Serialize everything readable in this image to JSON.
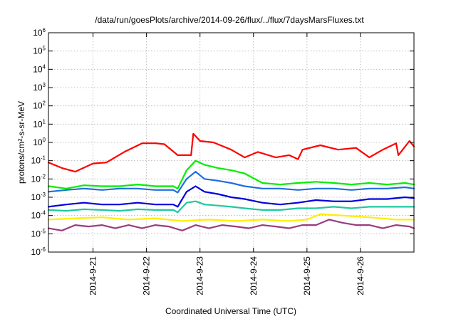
{
  "chart_data": {
    "type": "line",
    "title": "/data/run/goesPlots/archive/2014-09-26/flux/../flux/7daysMarsFluxes.txt",
    "xlabel": "Coordinated Universal Time (UTC)",
    "ylabel": "protons/cm²-s-sr-MeV",
    "y_scale": "log",
    "ylim": [
      1e-06,
      1000000.0
    ],
    "y_ticks": [
      {
        "value": 1e-06,
        "base": "10",
        "exp": "-6"
      },
      {
        "value": 1e-05,
        "base": "10",
        "exp": "-5"
      },
      {
        "value": 0.0001,
        "base": "10",
        "exp": "-4"
      },
      {
        "value": 0.001,
        "base": "10",
        "exp": "-3"
      },
      {
        "value": 0.01,
        "base": "10",
        "exp": "-2"
      },
      {
        "value": 0.1,
        "base": "10",
        "exp": "-1"
      },
      {
        "value": 1,
        "base": "10",
        "exp": "0"
      },
      {
        "value": 10,
        "base": "10",
        "exp": "1"
      },
      {
        "value": 100,
        "base": "10",
        "exp": "2"
      },
      {
        "value": 1000,
        "base": "10",
        "exp": "3"
      },
      {
        "value": 10000,
        "base": "10",
        "exp": "4"
      },
      {
        "value": 100000,
        "base": "10",
        "exp": "5"
      },
      {
        "value": 1000000,
        "base": "10",
        "exp": "6"
      }
    ],
    "xlim": [
      "2014-09-20T04:00",
      "2014-09-27T00:00"
    ],
    "x_ticks": [
      "2014-9-21",
      "2014-9-22",
      "2014-9-23",
      "2014-9-24",
      "2014-9-25",
      "2014-9-26"
    ],
    "grid": true,
    "series": [
      {
        "color": "#ff0000",
        "x": [
          "2014-09-20T04:00",
          "2014-09-20T10:00",
          "2014-09-20T16:00",
          "2014-09-21T00:00",
          "2014-09-21T06:00",
          "2014-09-21T14:00",
          "2014-09-21T22:00",
          "2014-09-22T04:00",
          "2014-09-22T08:00",
          "2014-09-22T14:00",
          "2014-09-22T20:00",
          "2014-09-22T21:00",
          "2014-09-23T00:00",
          "2014-09-23T06:00",
          "2014-09-23T14:00",
          "2014-09-23T20:00",
          "2014-09-24T02:00",
          "2014-09-24T10:00",
          "2014-09-24T16:00",
          "2014-09-24T20:00",
          "2014-09-24T22:00",
          "2014-09-25T06:00",
          "2014-09-25T14:00",
          "2014-09-25T22:00",
          "2014-09-26T04:00",
          "2014-09-26T10:00",
          "2014-09-26T16:00",
          "2014-09-26T17:00",
          "2014-09-26T22:00",
          "2014-09-27T00:00"
        ],
        "values": [
          0.08,
          0.04,
          0.025,
          0.07,
          0.08,
          0.3,
          0.9,
          0.9,
          0.8,
          0.2,
          0.2,
          3.0,
          1.2,
          1.0,
          0.4,
          0.15,
          0.3,
          0.15,
          0.2,
          0.12,
          0.4,
          0.7,
          0.4,
          0.5,
          0.15,
          0.4,
          0.9,
          0.2,
          1.2,
          0.6
        ]
      },
      {
        "color": "#00ee00",
        "x": [
          "2014-09-20T04:00",
          "2014-09-20T12:00",
          "2014-09-20T20:00",
          "2014-09-21T04:00",
          "2014-09-21T12:00",
          "2014-09-21T20:00",
          "2014-09-22T04:00",
          "2014-09-22T12:00",
          "2014-09-22T14:00",
          "2014-09-22T18:00",
          "2014-09-22T22:00",
          "2014-09-23T02:00",
          "2014-09-23T08:00",
          "2014-09-23T14:00",
          "2014-09-23T20:00",
          "2014-09-24T04:00",
          "2014-09-24T12:00",
          "2014-09-24T20:00",
          "2014-09-25T04:00",
          "2014-09-25T12:00",
          "2014-09-25T20:00",
          "2014-09-26T04:00",
          "2014-09-26T12:00",
          "2014-09-26T20:00",
          "2014-09-27T00:00"
        ],
        "values": [
          0.004,
          0.003,
          0.0045,
          0.004,
          0.004,
          0.005,
          0.004,
          0.004,
          0.003,
          0.03,
          0.1,
          0.06,
          0.04,
          0.03,
          0.02,
          0.006,
          0.005,
          0.006,
          0.007,
          0.006,
          0.005,
          0.006,
          0.005,
          0.006,
          0.005
        ]
      },
      {
        "color": "#1e6fe0",
        "x": [
          "2014-09-20T04:00",
          "2014-09-20T12:00",
          "2014-09-20T20:00",
          "2014-09-21T04:00",
          "2014-09-21T12:00",
          "2014-09-21T20:00",
          "2014-09-22T04:00",
          "2014-09-22T12:00",
          "2014-09-22T14:00",
          "2014-09-22T18:00",
          "2014-09-22T22:00",
          "2014-09-23T02:00",
          "2014-09-23T08:00",
          "2014-09-23T14:00",
          "2014-09-23T20:00",
          "2014-09-24T04:00",
          "2014-09-24T12:00",
          "2014-09-24T20:00",
          "2014-09-25T04:00",
          "2014-09-25T12:00",
          "2014-09-25T20:00",
          "2014-09-26T04:00",
          "2014-09-26T12:00",
          "2014-09-26T20:00",
          "2014-09-27T00:00"
        ],
        "values": [
          0.002,
          0.0025,
          0.003,
          0.0025,
          0.003,
          0.003,
          0.0025,
          0.0025,
          0.0018,
          0.01,
          0.025,
          0.01,
          0.008,
          0.006,
          0.004,
          0.003,
          0.003,
          0.0025,
          0.003,
          0.003,
          0.0025,
          0.003,
          0.003,
          0.0035,
          0.003
        ]
      },
      {
        "color": "#0000dd",
        "x": [
          "2014-09-20T04:00",
          "2014-09-20T12:00",
          "2014-09-20T20:00",
          "2014-09-21T04:00",
          "2014-09-21T12:00",
          "2014-09-21T20:00",
          "2014-09-22T04:00",
          "2014-09-22T12:00",
          "2014-09-22T14:00",
          "2014-09-22T18:00",
          "2014-09-22T22:00",
          "2014-09-23T02:00",
          "2014-09-23T08:00",
          "2014-09-23T14:00",
          "2014-09-23T20:00",
          "2014-09-24T04:00",
          "2014-09-24T12:00",
          "2014-09-24T20:00",
          "2014-09-25T04:00",
          "2014-09-25T12:00",
          "2014-09-25T20:00",
          "2014-09-26T04:00",
          "2014-09-26T12:00",
          "2014-09-26T20:00",
          "2014-09-27T00:00"
        ],
        "values": [
          0.0003,
          0.0004,
          0.0005,
          0.0004,
          0.0004,
          0.0005,
          0.0004,
          0.0004,
          0.0003,
          0.002,
          0.004,
          0.002,
          0.0015,
          0.001,
          0.0008,
          0.0005,
          0.0004,
          0.0005,
          0.0007,
          0.0006,
          0.0006,
          0.0008,
          0.0008,
          0.001,
          0.0009
        ]
      },
      {
        "color": "#20c8a0",
        "x": [
          "2014-09-20T04:00",
          "2014-09-20T12:00",
          "2014-09-20T20:00",
          "2014-09-21T04:00",
          "2014-09-21T12:00",
          "2014-09-21T20:00",
          "2014-09-22T04:00",
          "2014-09-22T12:00",
          "2014-09-22T14:00",
          "2014-09-22T18:00",
          "2014-09-22T22:00",
          "2014-09-23T02:00",
          "2014-09-23T08:00",
          "2014-09-23T14:00",
          "2014-09-23T20:00",
          "2014-09-24T04:00",
          "2014-09-24T12:00",
          "2014-09-24T20:00",
          "2014-09-25T04:00",
          "2014-09-25T12:00",
          "2014-09-25T20:00",
          "2014-09-26T04:00",
          "2014-09-26T12:00",
          "2014-09-26T20:00",
          "2014-09-27T00:00"
        ],
        "values": [
          0.0002,
          0.00018,
          0.00022,
          0.0002,
          0.00018,
          0.00022,
          0.0002,
          0.0002,
          0.00015,
          0.0005,
          0.0006,
          0.0004,
          0.00035,
          0.0003,
          0.00025,
          0.0002,
          0.0002,
          0.00025,
          0.00025,
          0.0003,
          0.00025,
          0.0003,
          0.0003,
          0.0003,
          0.0003
        ]
      },
      {
        "color": "#ffee00",
        "x": [
          "2014-09-20T04:00",
          "2014-09-20T16:00",
          "2014-09-21T04:00",
          "2014-09-21T16:00",
          "2014-09-22T04:00",
          "2014-09-22T16:00",
          "2014-09-23T04:00",
          "2014-09-23T16:00",
          "2014-09-24T04:00",
          "2014-09-24T16:00",
          "2014-09-25T00:00",
          "2014-09-25T06:00",
          "2014-09-25T16:00",
          "2014-09-26T04:00",
          "2014-09-26T16:00",
          "2014-09-27T00:00"
        ],
        "values": [
          6e-05,
          7e-05,
          8e-05,
          6e-05,
          7e-05,
          5e-05,
          6e-05,
          5e-05,
          6e-05,
          5e-05,
          6e-05,
          0.00012,
          0.0001,
          8e-05,
          6e-05,
          6e-05
        ]
      },
      {
        "color": "#9a3a80",
        "x": [
          "2014-09-20T04:00",
          "2014-09-20T10:00",
          "2014-09-20T16:00",
          "2014-09-20T22:00",
          "2014-09-21T04:00",
          "2014-09-21T10:00",
          "2014-09-21T16:00",
          "2014-09-21T22:00",
          "2014-09-22T04:00",
          "2014-09-22T10:00",
          "2014-09-22T16:00",
          "2014-09-22T22:00",
          "2014-09-23T04:00",
          "2014-09-23T10:00",
          "2014-09-23T16:00",
          "2014-09-23T22:00",
          "2014-09-24T04:00",
          "2014-09-24T10:00",
          "2014-09-24T16:00",
          "2014-09-24T22:00",
          "2014-09-25T04:00",
          "2014-09-25T10:00",
          "2014-09-25T16:00",
          "2014-09-25T22:00",
          "2014-09-26T04:00",
          "2014-09-26T10:00",
          "2014-09-26T16:00",
          "2014-09-26T22:00",
          "2014-09-27T00:00"
        ],
        "values": [
          2e-05,
          1.5e-05,
          3e-05,
          2.5e-05,
          3e-05,
          2e-05,
          3e-05,
          2e-05,
          3e-05,
          2.5e-05,
          1.5e-05,
          3e-05,
          2e-05,
          3e-05,
          2.5e-05,
          2e-05,
          3e-05,
          2.5e-05,
          2e-05,
          3e-05,
          3e-05,
          6e-05,
          4e-05,
          3e-05,
          3e-05,
          2e-05,
          3e-05,
          2.5e-05,
          2e-05
        ]
      }
    ]
  }
}
